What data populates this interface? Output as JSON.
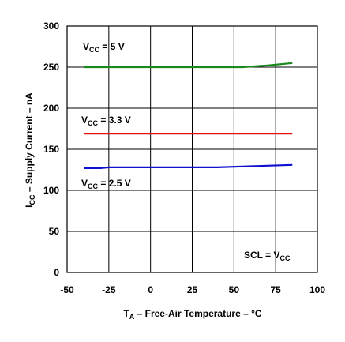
{
  "chart_data": {
    "type": "line",
    "title": "",
    "xlabel": {
      "main": "T",
      "sub": "A",
      "rest": " – Free-Air Temperature – °C"
    },
    "ylabel": {
      "main": "I",
      "sub": "CC",
      "rest": " – Supply Current – nA"
    },
    "xlim": [
      -50,
      100
    ],
    "ylim": [
      0,
      300
    ],
    "xticks": [
      -50,
      -25,
      0,
      25,
      50,
      75,
      100
    ],
    "yticks": [
      0,
      50,
      100,
      150,
      200,
      250,
      300
    ],
    "grid": true,
    "series": [
      {
        "name": {
          "main": "V",
          "sub": "CC",
          "rest": " = 5 V"
        },
        "color": "#1a8a1a",
        "x": [
          -40,
          -25,
          0,
          25,
          40,
          55,
          70,
          85
        ],
        "y": [
          250,
          250,
          250,
          250,
          250,
          250,
          252,
          255
        ]
      },
      {
        "name": {
          "main": "V",
          "sub": "CC",
          "rest": " = 3.3 V"
        },
        "color": "#e01010",
        "x": [
          -40,
          -25,
          0,
          25,
          40,
          55,
          70,
          85
        ],
        "y": [
          169,
          169,
          169,
          169,
          169,
          169,
          169,
          169
        ]
      },
      {
        "name": {
          "main": "V",
          "sub": "CC",
          "rest": " = 2.5 V"
        },
        "color": "#1010d0",
        "x": [
          -40,
          -30,
          -25,
          0,
          25,
          40,
          55,
          70,
          85
        ],
        "y": [
          127,
          127,
          128,
          128,
          128,
          128,
          129,
          130,
          131
        ]
      }
    ],
    "annotations": [
      {
        "main": "SCL = V",
        "sub": "CC",
        "rest": ""
      }
    ]
  }
}
